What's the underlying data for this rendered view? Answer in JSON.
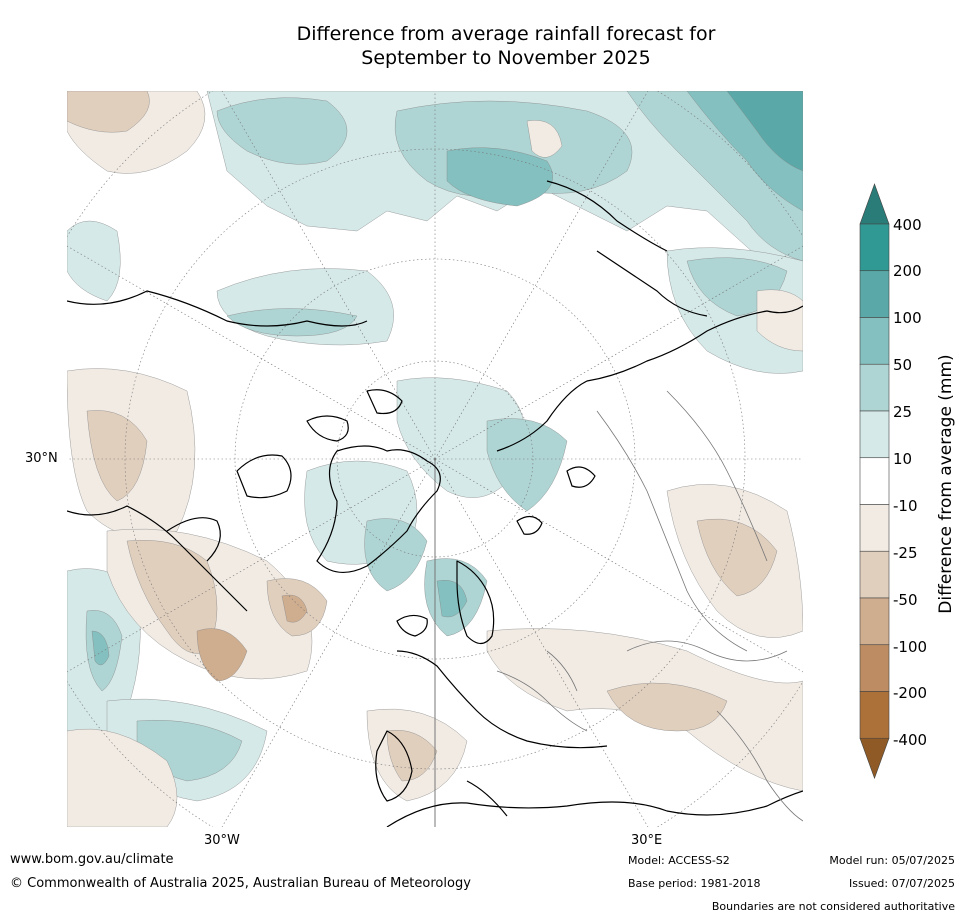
{
  "title": {
    "line1": "Difference from average rainfall forecast for",
    "line2": "September to November 2025"
  },
  "map": {
    "projection": "north-polar-stereographic",
    "lat_labels": [
      "30°N"
    ],
    "lon_labels": [
      "30°W",
      "30°E"
    ]
  },
  "colorbar": {
    "title": "Difference from average (mm)",
    "tick_labels": [
      "400",
      "200",
      "100",
      "50",
      "25",
      "10",
      "-10",
      "-25",
      "-50",
      "-100",
      "-200",
      "-400"
    ],
    "bins": [
      {
        "range": "> 400",
        "color": "#2a7c78"
      },
      {
        "range": "200 to 400",
        "color": "#319994"
      },
      {
        "range": "100 to 200",
        "color": "#5aa9a8"
      },
      {
        "range": "50 to 100",
        "color": "#83c0bf"
      },
      {
        "range": "25 to 50",
        "color": "#aed5d4"
      },
      {
        "range": "10 to 25",
        "color": "#d5e9e8"
      },
      {
        "range": "-10 to 10",
        "color": "#ffffff"
      },
      {
        "range": "-25 to -10",
        "color": "#f1ebe4"
      },
      {
        "range": "-50 to -25",
        "color": "#e1cfbe"
      },
      {
        "range": "-100 to -50",
        "color": "#cfad8f"
      },
      {
        "range": "-200 to -100",
        "color": "#bd8c62"
      },
      {
        "range": "-400 to -200",
        "color": "#ab7139"
      },
      {
        "range": "< -400",
        "color": "#8f5a25"
      }
    ]
  },
  "footer": {
    "website": "www.bom.gov.au/climate",
    "copyright": "© Commonwealth of Australia 2025, Australian Bureau of Meteorology",
    "model": "Model: ACCESS-S2",
    "base_period": "Base period: 1981-2018",
    "model_run": "Model run: 05/07/2025",
    "issued": "Issued: 07/07/2025",
    "disclaimer": "Boundaries are not considered authoritative"
  }
}
